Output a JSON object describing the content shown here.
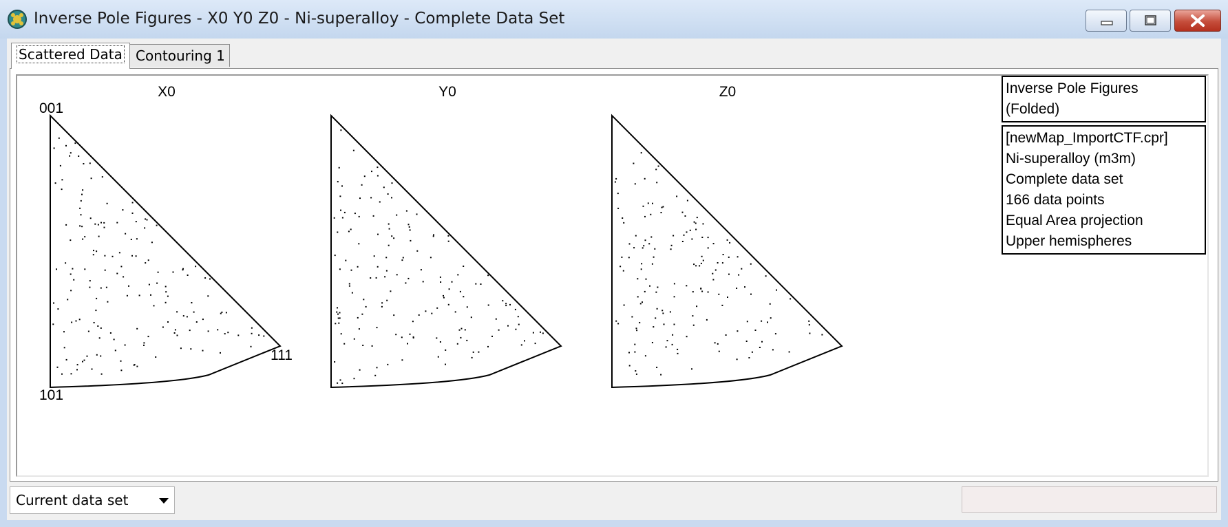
{
  "window": {
    "title": "Inverse Pole Figures - X0 Y0 Z0 - Ni-superalloy - Complete Data Set",
    "icon": "globe-app-icon"
  },
  "tabs": [
    {
      "label": "Scattered Data",
      "active": true
    },
    {
      "label": "Contouring 1",
      "active": false
    }
  ],
  "figures": {
    "type": "scatter",
    "panels": [
      {
        "title": "X0",
        "corner_labels": {
          "top": "001",
          "bottom": "101",
          "right": "111"
        }
      },
      {
        "title": "Y0"
      },
      {
        "title": "Z0"
      }
    ]
  },
  "legend": {
    "header": [
      "Inverse Pole Figures",
      "(Folded)"
    ],
    "info": [
      "[newMap_ImportCTF.cpr]",
      "Ni-superalloy (m3m)",
      "Complete data set",
      "166 data points",
      "Equal Area projection",
      "Upper hemispheres"
    ]
  },
  "statusbar": {
    "dataset_selector": "Current data set"
  },
  "colors": {
    "titlebar": "#c9daf0",
    "close_button": "#c54d3b",
    "points": "#000000"
  }
}
